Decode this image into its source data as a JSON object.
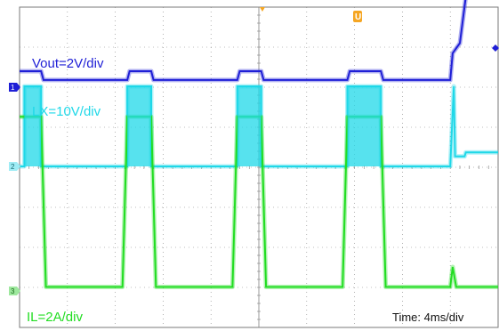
{
  "chart_data": {
    "type": "line",
    "title": "",
    "xlabel": "",
    "ylabel": "",
    "grid": true,
    "grid_divisions": {
      "x": 10,
      "y": 8
    },
    "x_unit": "ms",
    "x_range": [
      0,
      40
    ],
    "time_scale_label": "Time: 4ms/div",
    "trigger_time_ms": 0,
    "colors": {
      "vout": "#1f1fd6",
      "lx": "#1fd8e8",
      "il": "#22dd22",
      "trigger_marker": "#f5a623",
      "grid": "#808080"
    },
    "series": [
      {
        "name": "Vout=2V/div",
        "scale_per_div": 2,
        "unit": "V",
        "ground_level_div": 0,
        "color": "#1f1fd6",
        "x": [
          0,
          1.8,
          2.0,
          9.0,
          9.2,
          11.0,
          11.2,
          18.2,
          18.4,
          20.2,
          20.4,
          27.4,
          27.6,
          30.2,
          30.4,
          36.0,
          36.2,
          36.8,
          37.6,
          38.2,
          40
        ],
        "y": [
          0.4,
          0.4,
          0.18,
          0.18,
          0.4,
          0.4,
          0.18,
          0.18,
          0.4,
          0.4,
          0.18,
          0.18,
          0.4,
          0.4,
          0.18,
          0.18,
          0.85,
          1.1,
          2.95,
          3.05,
          3.0
        ]
      },
      {
        "name": "LX=10V/div",
        "scale_per_div": 10,
        "unit": "V",
        "ground_level_div": 0,
        "color": "#1fd8e8",
        "x": [
          0,
          0.4,
          0.4,
          1.8,
          1.8,
          9.0,
          9.0,
          11.0,
          11.0,
          18.2,
          18.2,
          20.2,
          20.2,
          27.4,
          27.4,
          30.2,
          30.2,
          36.0,
          36.3,
          36.4,
          37.2,
          37.3,
          40
        ],
        "y": [
          0,
          0,
          2.0,
          2.0,
          0,
          0,
          2.0,
          2.0,
          0,
          0,
          2.0,
          2.0,
          0,
          0,
          2.0,
          2.0,
          0,
          0,
          2.0,
          0.25,
          0.25,
          0.35,
          0.35
        ]
      },
      {
        "name": "IL=2A/div",
        "scale_per_div": 2,
        "unit": "A",
        "ground_level_div": 0,
        "color": "#22dd22",
        "x": [
          0,
          0.9,
          1.8,
          2.2,
          8.6,
          9.0,
          9.9,
          11.0,
          11.4,
          17.8,
          18.2,
          19.1,
          20.2,
          20.6,
          27.0,
          27.4,
          28.3,
          30.2,
          30.6,
          36.0,
          36.2,
          36.5,
          40
        ],
        "y": [
          4.35,
          4.35,
          4.35,
          0.1,
          0.1,
          4.35,
          4.35,
          4.35,
          0.1,
          0.1,
          4.35,
          4.35,
          4.35,
          0.1,
          0.1,
          4.35,
          4.35,
          4.35,
          0.1,
          0.1,
          0.6,
          0.1,
          0.1
        ]
      }
    ]
  }
}
